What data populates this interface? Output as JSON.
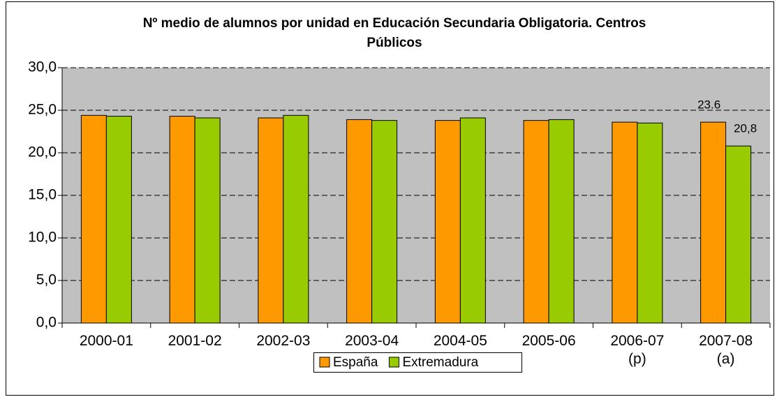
{
  "chart_data": {
    "type": "bar",
    "title": "Nº medio de alumnos por unidad en Educación Secundaria Obligatoria. Centros Públicos",
    "categories": [
      "2000-01",
      "2001-02",
      "2002-03",
      "2003-04",
      "2004-05",
      "2005-06",
      "2006-07 (p)",
      "2007-08 (a)"
    ],
    "series": [
      {
        "name": "España",
        "color": "#ff9900",
        "values": [
          24.4,
          24.3,
          24.1,
          23.9,
          23.8,
          23.8,
          23.6,
          23.6
        ],
        "value_labels": [
          null,
          null,
          null,
          null,
          null,
          null,
          null,
          "23.6"
        ]
      },
      {
        "name": "Extremadura",
        "color": "#99cc00",
        "values": [
          24.3,
          24.1,
          24.4,
          23.8,
          24.1,
          23.9,
          23.5,
          20.8
        ],
        "value_labels": [
          null,
          null,
          null,
          null,
          null,
          null,
          null,
          "20,8"
        ]
      }
    ],
    "ylim": [
      0,
      30
    ],
    "yticks": [
      {
        "value": 0,
        "label": "0,0"
      },
      {
        "value": 5,
        "label": "5,0"
      },
      {
        "value": 10,
        "label": "10,0"
      },
      {
        "value": 15,
        "label": "15,0"
      },
      {
        "value": 20,
        "label": "20,0"
      },
      {
        "value": 25,
        "label": "25,0"
      },
      {
        "value": 30,
        "label": "30,0"
      }
    ],
    "grid": true,
    "plot_background": "#c0c0c0",
    "legend": "bottom"
  }
}
